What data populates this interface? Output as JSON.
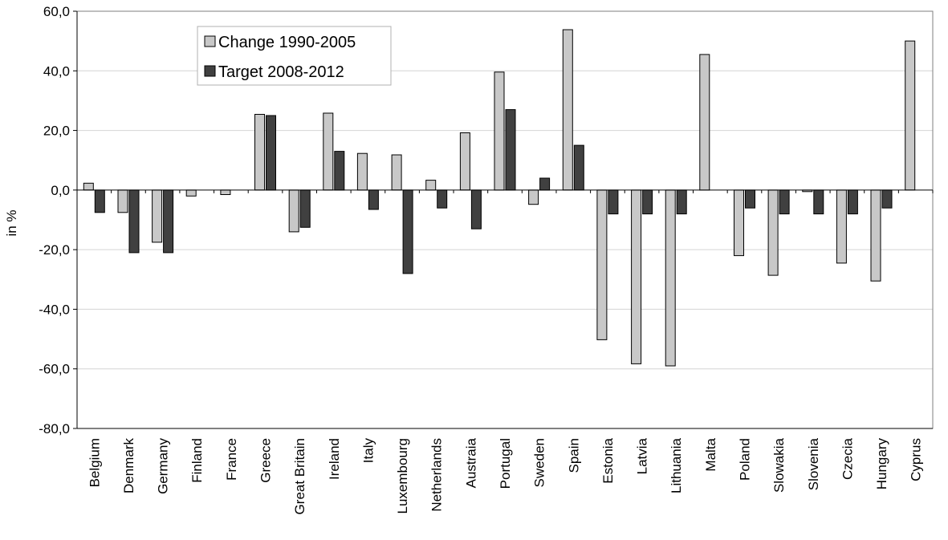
{
  "chart_data": {
    "type": "bar",
    "title": "",
    "xlabel": "",
    "ylabel": "in %",
    "ylim": [
      -80,
      60
    ],
    "yticks": [
      60,
      40,
      20,
      0,
      -20,
      -40,
      -60,
      -80
    ],
    "ytick_labels": [
      "60,0",
      "40,0",
      "20,0",
      "0,0",
      "-20,0",
      "-40,0",
      "-60,0",
      "-80,0"
    ],
    "grid": true,
    "legend_position": "top-left",
    "categories": [
      "Belgium",
      "Denmark",
      "Germany",
      "Finland",
      "France",
      "Greece",
      "Great Britain",
      "Ireland",
      "Italy",
      "Luxembourg",
      "Netherlands",
      "Austraia",
      "Portugal",
      "Sweden",
      "Spain",
      "Estonia",
      "Latvia",
      "Lithuania",
      "Malta",
      "Poland",
      "Slowakia",
      "Slovenia",
      "Czecia",
      "Hungary",
      "Cyprus"
    ],
    "series": [
      {
        "name": "Change 1990-2005",
        "color": "#c8c8c8",
        "values": [
          2.3,
          -7.5,
          -17.5,
          -2.0,
          -1.5,
          25.4,
          -14.0,
          25.8,
          12.3,
          11.8,
          3.3,
          19.2,
          39.6,
          -4.8,
          53.8,
          -50.2,
          -58.3,
          -59.0,
          45.5,
          -22.0,
          -28.6,
          -0.5,
          -24.5,
          -30.5,
          50.0
        ]
      },
      {
        "name": "Target 2008-2012",
        "color": "#404040",
        "values": [
          -7.5,
          -21.0,
          -21.0,
          0,
          0,
          25.0,
          -12.5,
          13.0,
          -6.5,
          -28.0,
          -6.0,
          -13.0,
          27.0,
          4.0,
          15.0,
          -8.0,
          -8.0,
          -8.0,
          0,
          -6.0,
          -8.0,
          -8.0,
          -8.0,
          -6.0,
          0
        ]
      }
    ]
  }
}
